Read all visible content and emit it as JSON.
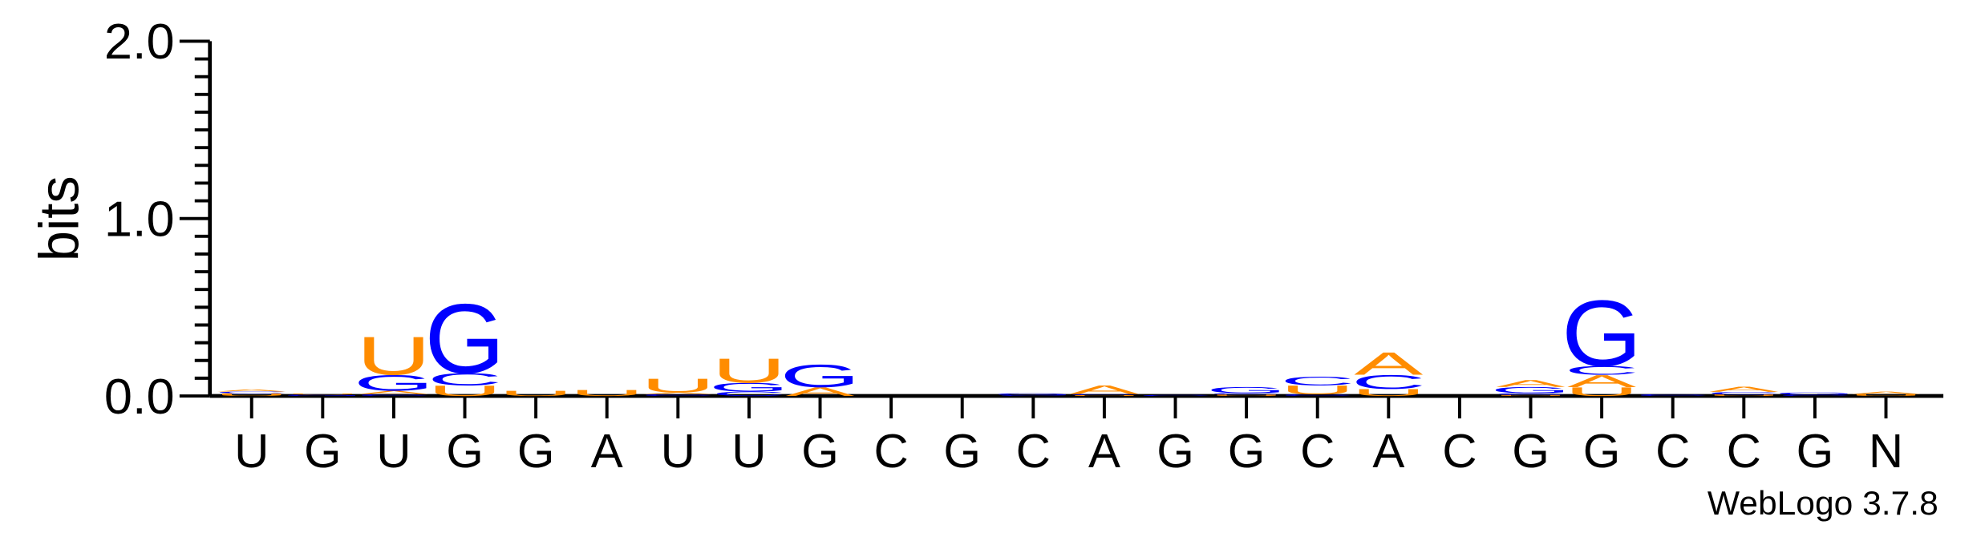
{
  "chart_data": {
    "type": "sequence-logo",
    "ylabel": "bits",
    "ylim": [
      0,
      2.0
    ],
    "yticks": [
      "0.0",
      "1.0",
      "2.0"
    ],
    "categories": [
      "U",
      "G",
      "U",
      "G",
      "G",
      "A",
      "U",
      "U",
      "G",
      "C",
      "G",
      "C",
      "A",
      "G",
      "G",
      "C",
      "A",
      "C",
      "G",
      "G",
      "C",
      "C",
      "G",
      "N"
    ],
    "colors": {
      "A": "#ff8c00",
      "U": "#ff8c00",
      "G": "#0000ff",
      "C": "#0000ff"
    },
    "stacks": [
      [
        {
          "l": "U",
          "h": 0.015
        },
        {
          "l": "C",
          "h": 0.01
        },
        {
          "l": "A",
          "h": 0.012
        }
      ],
      [
        {
          "l": "G",
          "h": 0.008
        },
        {
          "l": "U",
          "h": 0.006
        }
      ],
      [
        {
          "l": "C",
          "h": 0.01
        },
        {
          "l": "A",
          "h": 0.02
        },
        {
          "l": "G",
          "h": 0.09
        },
        {
          "l": "U",
          "h": 0.22
        }
      ],
      [
        {
          "l": "U",
          "h": 0.06
        },
        {
          "l": "C",
          "h": 0.07
        },
        {
          "l": "G",
          "h": 0.4
        }
      ],
      [
        {
          "l": "U",
          "h": 0.03
        }
      ],
      [
        {
          "l": "U",
          "h": 0.035
        }
      ],
      [
        {
          "l": "C",
          "h": 0.01
        },
        {
          "l": "A",
          "h": 0.01
        },
        {
          "l": "U",
          "h": 0.08
        }
      ],
      [
        {
          "l": "C",
          "h": 0.025
        },
        {
          "l": "G",
          "h": 0.05
        },
        {
          "l": "U",
          "h": 0.14
        }
      ],
      [
        {
          "l": "A",
          "h": 0.05
        },
        {
          "l": "G",
          "h": 0.13
        }
      ],
      [],
      [],
      [
        {
          "l": "C",
          "h": 0.005
        },
        {
          "l": "G",
          "h": 0.01
        }
      ],
      [
        {
          "l": "U",
          "h": 0.005
        },
        {
          "l": "C",
          "h": 0.006
        },
        {
          "l": "A",
          "h": 0.05
        }
      ],
      [
        {
          "l": "C",
          "h": 0.006
        }
      ],
      [
        {
          "l": "U",
          "h": 0.008
        },
        {
          "l": "C",
          "h": 0.008
        },
        {
          "l": "G",
          "h": 0.035
        }
      ],
      [
        {
          "l": "C",
          "h": 0.01
        },
        {
          "l": "U",
          "h": 0.05
        },
        {
          "l": "C",
          "h": 0.05
        }
      ],
      [
        {
          "l": "U",
          "h": 0.04
        },
        {
          "l": "C",
          "h": 0.08
        },
        {
          "l": "A",
          "h": 0.13
        }
      ],
      [],
      [
        {
          "l": "U",
          "h": 0.006
        },
        {
          "l": "C",
          "h": 0.01
        },
        {
          "l": "G",
          "h": 0.035
        },
        {
          "l": "A",
          "h": 0.04
        }
      ],
      [
        {
          "l": "U",
          "h": 0.05
        },
        {
          "l": "A",
          "h": 0.07
        },
        {
          "l": "C",
          "h": 0.05
        },
        {
          "l": "G",
          "h": 0.38
        }
      ],
      [
        {
          "l": "C",
          "h": 0.01
        }
      ],
      [
        {
          "l": "U",
          "h": 0.008
        },
        {
          "l": "C",
          "h": 0.015
        },
        {
          "l": "A",
          "h": 0.03
        }
      ],
      [
        {
          "l": "C",
          "h": 0.008
        },
        {
          "l": "G",
          "h": 0.012
        }
      ],
      [
        {
          "l": "U",
          "h": 0.01
        },
        {
          "l": "A",
          "h": 0.015
        }
      ]
    ]
  },
  "footer": {
    "version_label": "WebLogo 3.7.8"
  }
}
